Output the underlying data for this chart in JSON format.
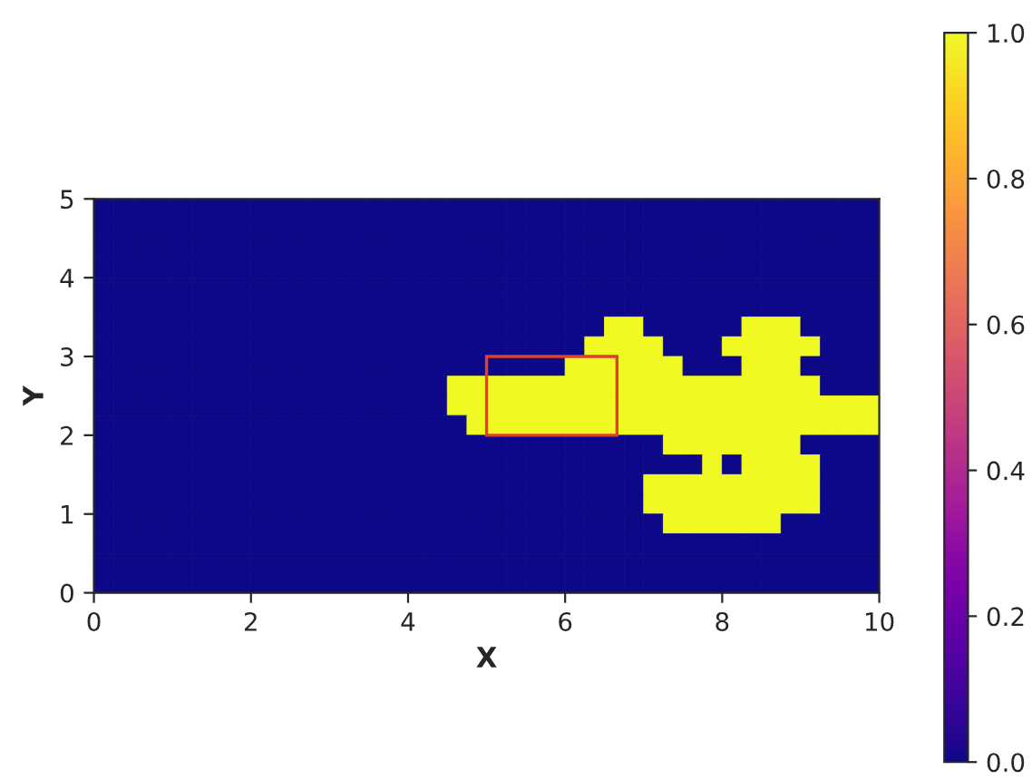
{
  "chart_data": {
    "type": "heatmap",
    "xlabel": "X",
    "ylabel": "Y",
    "xlim": [
      0,
      10
    ],
    "ylim": [
      0,
      5
    ],
    "xticks": [
      0,
      2,
      4,
      6,
      8,
      10
    ],
    "yticks": [
      0,
      1,
      2,
      3,
      4,
      5
    ],
    "clim": [
      0,
      1
    ],
    "cticks": [
      {
        "value": 0,
        "label": "0.0"
      },
      {
        "value": 0.2,
        "label": "0.2"
      },
      {
        "value": 0.4,
        "label": "0.4"
      },
      {
        "value": 0.6,
        "label": "0.6"
      },
      {
        "value": 0.8,
        "label": "0.8"
      },
      {
        "value": 1,
        "label": "1.0"
      }
    ],
    "cells": [
      [
        0,
        0,
        0,
        0,
        0,
        0,
        0,
        0,
        0,
        0,
        0,
        0,
        0,
        0,
        0,
        0,
        0,
        0,
        0,
        0,
        0,
        0,
        0,
        0,
        0,
        0,
        0,
        0,
        0,
        0,
        0,
        0,
        0,
        0,
        0,
        0,
        0,
        0,
        0,
        0
      ],
      [
        0,
        0,
        0,
        0,
        0,
        0,
        0,
        0,
        0,
        0,
        0,
        0,
        0,
        0,
        0,
        0,
        0,
        0,
        0,
        0,
        0,
        0,
        0,
        0,
        0,
        0,
        0,
        0,
        0,
        0,
        0,
        0,
        0,
        0,
        0,
        0,
        0,
        0,
        0,
        0
      ],
      [
        0,
        0,
        0,
        0,
        0,
        0,
        0,
        0,
        0,
        0,
        0,
        0,
        0,
        0,
        0,
        0,
        0,
        0,
        0,
        0,
        0,
        0,
        0,
        0,
        0,
        0,
        0,
        0,
        0,
        0,
        0,
        0,
        0,
        0,
        0,
        0,
        0,
        0,
        0,
        0
      ],
      [
        0,
        0,
        0,
        0,
        0,
        0,
        0,
        0,
        0,
        0,
        0,
        0,
        0,
        0,
        0,
        0,
        0,
        0,
        0,
        0,
        0,
        0,
        0,
        0,
        0,
        0,
        0,
        0,
        0,
        0,
        0,
        0,
        0,
        0,
        0,
        0,
        0,
        0,
        0,
        0
      ],
      [
        0,
        0,
        0,
        0,
        0,
        0,
        0,
        0,
        0,
        0,
        0,
        0,
        0,
        0,
        0,
        0,
        0,
        0,
        0,
        0,
        0,
        0,
        0,
        0,
        0,
        0,
        0,
        0,
        0,
        0,
        0,
        0,
        0,
        0,
        0,
        0,
        0,
        0,
        0,
        0
      ],
      [
        0,
        0,
        0,
        0,
        0,
        0,
        0,
        0,
        0,
        0,
        0,
        0,
        0,
        0,
        0,
        0,
        0,
        0,
        0,
        0,
        0,
        0,
        0,
        0,
        0,
        0,
        0,
        0,
        0,
        0,
        0,
        0,
        0,
        0,
        0,
        0,
        0,
        0,
        0,
        0
      ],
      [
        0,
        0,
        0,
        0,
        0,
        0,
        0,
        0,
        0,
        0,
        0,
        0,
        0,
        0,
        0,
        0,
        0,
        0,
        0,
        0,
        0,
        0,
        0,
        0,
        0,
        0,
        1,
        1,
        0,
        0,
        0,
        0,
        0,
        1,
        1,
        1,
        0,
        0,
        0,
        0
      ],
      [
        0,
        0,
        0,
        0,
        0,
        0,
        0,
        0,
        0,
        0,
        0,
        0,
        0,
        0,
        0,
        0,
        0,
        0,
        0,
        0,
        0,
        0,
        0,
        0,
        0,
        1,
        1,
        1,
        1,
        0,
        0,
        0,
        1,
        1,
        1,
        1,
        1,
        0,
        0,
        0
      ],
      [
        0,
        0,
        0,
        0,
        0,
        0,
        0,
        0,
        0,
        0,
        0,
        0,
        0,
        0,
        0,
        0,
        0,
        0,
        0,
        0,
        0,
        0,
        0,
        0,
        1,
        1,
        1,
        1,
        1,
        1,
        0,
        0,
        0,
        1,
        1,
        1,
        0,
        0,
        0,
        0
      ],
      [
        0,
        0,
        0,
        0,
        0,
        0,
        0,
        0,
        0,
        0,
        0,
        0,
        0,
        0,
        0,
        0,
        0,
        0,
        1,
        1,
        1,
        1,
        1,
        1,
        1,
        1,
        1,
        1,
        1,
        1,
        1,
        1,
        1,
        1,
        1,
        1,
        1,
        0,
        0,
        0
      ],
      [
        0,
        0,
        0,
        0,
        0,
        0,
        0,
        0,
        0,
        0,
        0,
        0,
        0,
        0,
        0,
        0,
        0,
        0,
        1,
        1,
        1,
        1,
        1,
        1,
        1,
        1,
        1,
        1,
        1,
        1,
        1,
        1,
        1,
        1,
        1,
        1,
        1,
        1,
        1,
        1
      ],
      [
        0,
        0,
        0,
        0,
        0,
        0,
        0,
        0,
        0,
        0,
        0,
        0,
        0,
        0,
        0,
        0,
        0,
        0,
        0,
        1,
        1,
        1,
        1,
        1,
        1,
        1,
        1,
        1,
        1,
        1,
        1,
        1,
        1,
        1,
        1,
        1,
        1,
        1,
        1,
        1
      ],
      [
        0,
        0,
        0,
        0,
        0,
        0,
        0,
        0,
        0,
        0,
        0,
        0,
        0,
        0,
        0,
        0,
        0,
        0,
        0,
        0,
        0,
        0,
        0,
        0,
        0,
        0,
        0,
        0,
        0,
        1,
        1,
        1,
        1,
        1,
        1,
        1,
        0,
        0,
        0,
        0
      ],
      [
        0,
        0,
        0,
        0,
        0,
        0,
        0,
        0,
        0,
        0,
        0,
        0,
        0,
        0,
        0,
        0,
        0,
        0,
        0,
        0,
        0,
        0,
        0,
        0,
        0,
        0,
        0,
        0,
        0,
        0,
        0,
        1,
        0,
        1,
        1,
        1,
        1,
        0,
        0,
        0
      ],
      [
        0,
        0,
        0,
        0,
        0,
        0,
        0,
        0,
        0,
        0,
        0,
        0,
        0,
        0,
        0,
        0,
        0,
        0,
        0,
        0,
        0,
        0,
        0,
        0,
        0,
        0,
        0,
        0,
        1,
        1,
        1,
        1,
        1,
        1,
        1,
        1,
        1,
        0,
        0,
        0
      ],
      [
        0,
        0,
        0,
        0,
        0,
        0,
        0,
        0,
        0,
        0,
        0,
        0,
        0,
        0,
        0,
        0,
        0,
        0,
        0,
        0,
        0,
        0,
        0,
        0,
        0,
        0,
        0,
        0,
        1,
        1,
        1,
        1,
        1,
        1,
        1,
        1,
        1,
        0,
        0,
        0
      ],
      [
        0,
        0,
        0,
        0,
        0,
        0,
        0,
        0,
        0,
        0,
        0,
        0,
        0,
        0,
        0,
        0,
        0,
        0,
        0,
        0,
        0,
        0,
        0,
        0,
        0,
        0,
        0,
        0,
        0,
        1,
        1,
        1,
        1,
        1,
        1,
        0,
        0,
        0,
        0,
        0
      ],
      [
        0,
        0,
        0,
        0,
        0,
        0,
        0,
        0,
        0,
        0,
        0,
        0,
        0,
        0,
        0,
        0,
        0,
        0,
        0,
        0,
        0,
        0,
        0,
        0,
        0,
        0,
        0,
        0,
        0,
        0,
        0,
        0,
        0,
        0,
        0,
        0,
        0,
        0,
        0,
        0
      ],
      [
        0,
        0,
        0,
        0,
        0,
        0,
        0,
        0,
        0,
        0,
        0,
        0,
        0,
        0,
        0,
        0,
        0,
        0,
        0,
        0,
        0,
        0,
        0,
        0,
        0,
        0,
        0,
        0,
        0,
        0,
        0,
        0,
        0,
        0,
        0,
        0,
        0,
        0,
        0,
        0
      ],
      [
        0,
        0,
        0,
        0,
        0,
        0,
        0,
        0,
        0,
        0,
        0,
        0,
        0,
        0,
        0,
        0,
        0,
        0,
        0,
        0,
        0,
        0,
        0,
        0,
        0,
        0,
        0,
        0,
        0,
        0,
        0,
        0,
        0,
        0,
        0,
        0,
        0,
        0,
        0,
        0
      ]
    ]
  }
}
